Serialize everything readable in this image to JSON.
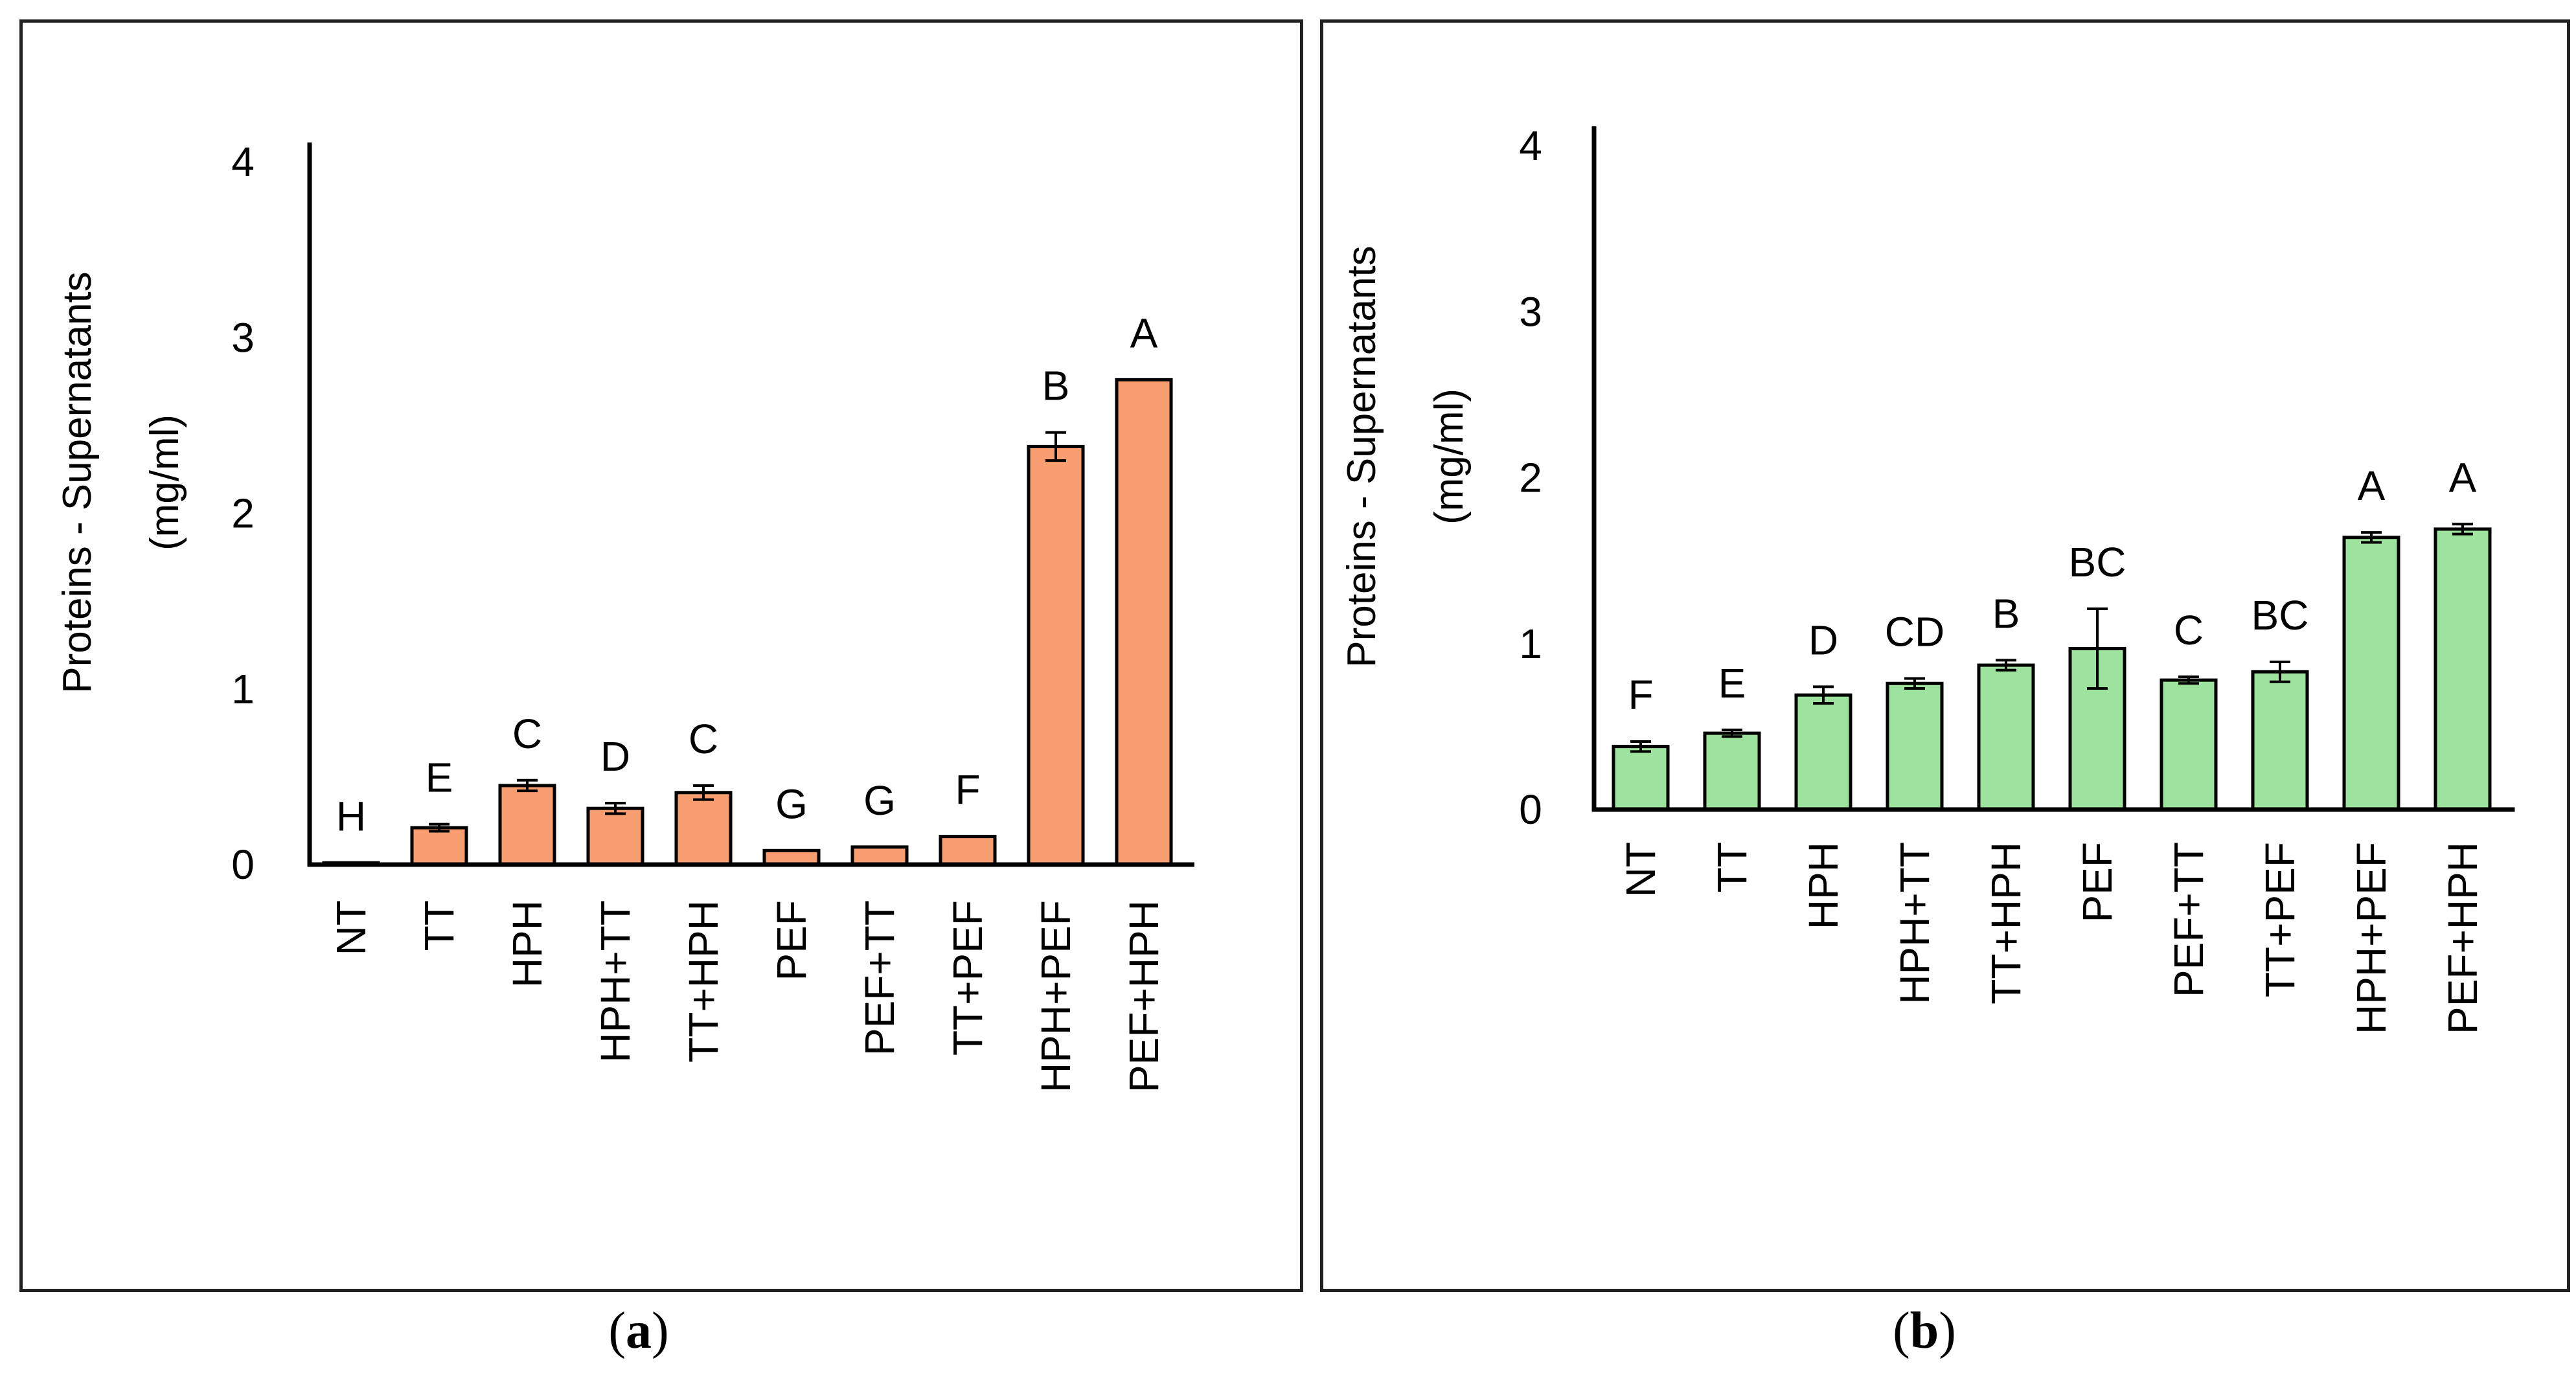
{
  "chart_data": [
    {
      "type": "bar",
      "panel": "a",
      "title": "",
      "xlabel": "",
      "ylabel": [
        "Proteins - Supernatants",
        "(mg/ml)"
      ],
      "ylim": [
        0,
        4
      ],
      "yticks": [
        "0",
        "1",
        "2",
        "3",
        "4"
      ],
      "categories": [
        "NT",
        "TT",
        "HPH",
        "HPH+TT",
        "TT+HPH",
        "PEF",
        "PEF+TT",
        "TT+PEF",
        "HPH+PEF",
        "PEF+HPH"
      ],
      "values": [
        0.01,
        0.21,
        0.45,
        0.32,
        0.41,
        0.08,
        0.1,
        0.16,
        2.38,
        2.76
      ],
      "errors": [
        0.0,
        0.02,
        0.03,
        0.03,
        0.04,
        0.0,
        0.0,
        0.0,
        0.08,
        0.0
      ],
      "letters": [
        "H",
        "E",
        "C",
        "D",
        "C",
        "G",
        "G",
        "F",
        "B",
        "A"
      ],
      "color": "#f79d6f"
    },
    {
      "type": "bar",
      "panel": "b",
      "title": "",
      "xlabel": "",
      "ylabel": [
        "Proteins - Supernatants",
        "(mg/ml)"
      ],
      "ylim": [
        0,
        4
      ],
      "yticks": [
        "0",
        "1",
        "2",
        "3",
        "4"
      ],
      "categories": [
        "NT",
        "TT",
        "HPH",
        "HPH+TT",
        "TT+HPH",
        "PEF",
        "PEF+TT",
        "TT+PEF",
        "HPH+PEF",
        "PEF+HPH"
      ],
      "values": [
        0.38,
        0.46,
        0.69,
        0.76,
        0.87,
        0.97,
        0.78,
        0.83,
        1.64,
        1.69
      ],
      "errors": [
        0.03,
        0.02,
        0.05,
        0.03,
        0.03,
        0.24,
        0.02,
        0.06,
        0.03,
        0.03
      ],
      "letters": [
        "F",
        "E",
        "D",
        "CD",
        "B",
        "BC",
        "C",
        "BC",
        "A",
        "A"
      ],
      "color": "#9ee39d"
    }
  ],
  "captions": {
    "a": "a",
    "b": "b"
  }
}
